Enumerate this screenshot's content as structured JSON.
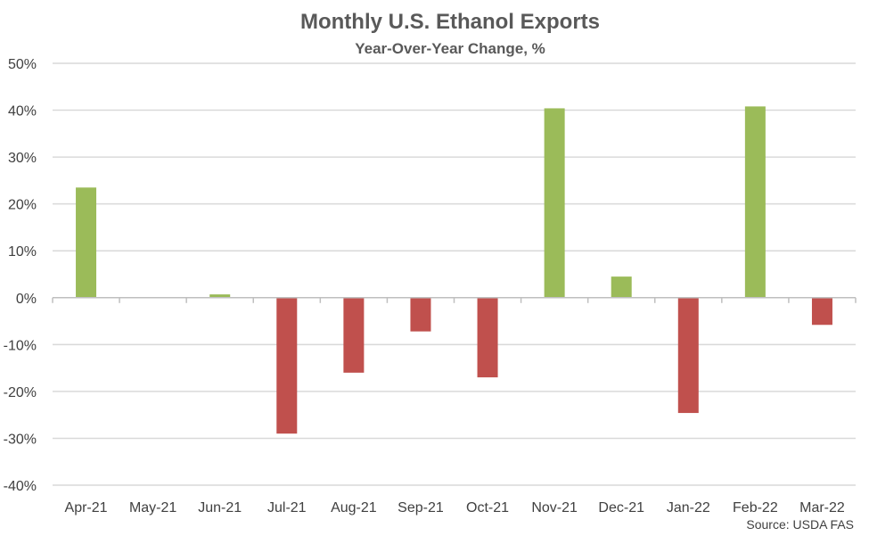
{
  "chart_data": {
    "type": "bar",
    "title": "Monthly U.S. Ethanol Exports",
    "subtitle": "Year-Over-Year Change, %",
    "source": "Source: USDA FAS",
    "categories": [
      "Apr-21",
      "May-21",
      "Jun-21",
      "Jul-21",
      "Aug-21",
      "Sep-21",
      "Oct-21",
      "Nov-21",
      "Dec-21",
      "Jan-22",
      "Feb-22",
      "Mar-22"
    ],
    "values": [
      23.5,
      0.0,
      0.7,
      -29.0,
      -16.0,
      -7.2,
      -17.0,
      40.4,
      4.5,
      -24.6,
      40.8,
      -5.8
    ],
    "ylim": [
      -40,
      50
    ],
    "yticks": [
      -40,
      -30,
      -20,
      -10,
      0,
      10,
      20,
      30,
      40,
      50
    ],
    "ytick_format": "%",
    "grid": true,
    "legend": "none",
    "colors": {
      "positive": "#9BBB59",
      "negative": "#C0504D",
      "grid": "#D9D9D9",
      "axis": "#BFBFBF"
    }
  }
}
